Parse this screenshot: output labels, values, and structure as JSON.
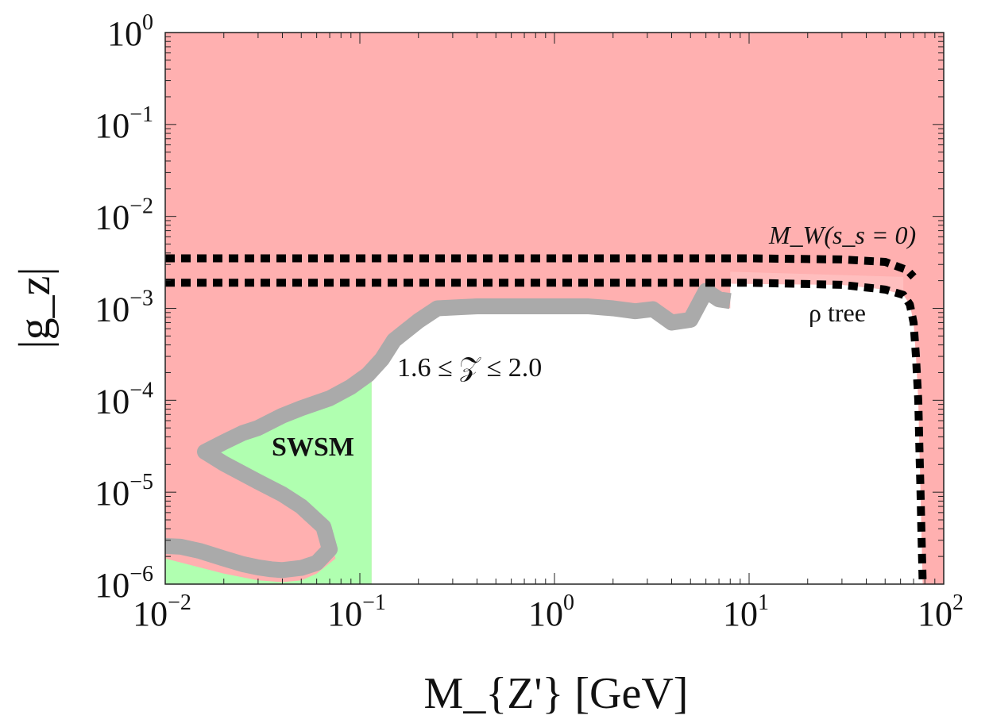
{
  "chart_data": {
    "type": "area",
    "xlabel": "M_{Z'} [GeV]",
    "ylabel": "|g_z|",
    "x_scale": "log",
    "y_scale": "log",
    "xlim": [
      0.01,
      100
    ],
    "ylim": [
      1e-06,
      1
    ],
    "grid": false,
    "x_ticks": [
      {
        "value": 0.01,
        "base": "10",
        "exp": "−2"
      },
      {
        "value": 0.1,
        "base": "10",
        "exp": "−1"
      },
      {
        "value": 1,
        "base": "10",
        "exp": "0"
      },
      {
        "value": 10,
        "base": "10",
        "exp": "1"
      },
      {
        "value": 100,
        "base": "10",
        "exp": "2"
      }
    ],
    "y_ticks": [
      {
        "value": 1,
        "base": "10",
        "exp": "0"
      },
      {
        "value": 0.1,
        "base": "10",
        "exp": "−1"
      },
      {
        "value": 0.01,
        "base": "10",
        "exp": "−2"
      },
      {
        "value": 0.001,
        "base": "10",
        "exp": "−3"
      },
      {
        "value": 0.0001,
        "base": "10",
        "exp": "−4"
      },
      {
        "value": 1e-05,
        "base": "10",
        "exp": "−5"
      },
      {
        "value": 1e-06,
        "base": "10",
        "exp": "−6"
      }
    ],
    "colors": {
      "excluded": "#ffb0b0",
      "allowed_swsm": "#b0ffb0",
      "band": "#aaaaaa",
      "light_band": "#ffc8c8",
      "line": "#000000"
    },
    "series": [
      {
        "key": "swsm_band",
        "style": "band",
        "points": [
          [
            0.01,
            2.6e-06
          ],
          [
            0.012,
            2.55e-06
          ],
          [
            0.015,
            2.3e-06
          ],
          [
            0.02,
            1.9e-06
          ],
          [
            0.025,
            1.65e-06
          ],
          [
            0.03,
            1.52e-06
          ],
          [
            0.035,
            1.45e-06
          ],
          [
            0.04,
            1.42e-06
          ],
          [
            0.05,
            1.5e-06
          ],
          [
            0.06,
            1.7e-06
          ],
          [
            0.07,
            2.4e-06
          ],
          [
            0.065,
            4.2e-06
          ],
          [
            0.05,
            7e-06
          ],
          [
            0.04,
            9.5e-06
          ],
          [
            0.03,
            1.3e-05
          ],
          [
            0.02,
            2.05e-05
          ],
          [
            0.016,
            2.75e-05
          ],
          [
            0.02,
            3.5e-05
          ],
          [
            0.025,
            4.4e-05
          ],
          [
            0.03,
            5e-05
          ],
          [
            0.04,
            6.8e-05
          ],
          [
            0.05,
            8.2e-05
          ],
          [
            0.07,
            0.000105
          ],
          [
            0.09,
            0.00014
          ],
          [
            0.11,
            0.00019
          ],
          [
            0.13,
            0.00028
          ],
          [
            0.15,
            0.00045
          ],
          [
            0.2,
            0.00073
          ],
          [
            0.25,
            0.001
          ],
          [
            0.4,
            0.00105
          ],
          [
            0.6,
            0.00105
          ],
          [
            1,
            0.00105
          ],
          [
            1.5,
            0.00105
          ],
          [
            2,
            0.001
          ],
          [
            2.6,
            0.00093
          ],
          [
            3.2,
            0.00098
          ],
          [
            4,
            0.0007
          ],
          [
            5,
            0.00075
          ],
          [
            6,
            0.00155
          ],
          [
            7,
            0.00125
          ],
          [
            8,
            0.0012
          ]
        ],
        "width": [
          1.3e-06,
          1.3e-06,
          1.3e-06,
          1.3e-06,
          1.3e-06,
          1.3e-06,
          1.3e-06,
          1.3e-06,
          1.3e-06,
          1.3e-06,
          1.3e-06,
          1.3e-06,
          1.3e-06,
          1.3e-06,
          1.3e-06,
          1.3e-06,
          1.3e-06,
          1.3e-06,
          1.3e-06,
          1.3e-06,
          1.3e-06,
          1.3e-06,
          1.3e-06,
          1.3e-06,
          1.3e-06,
          1.3e-06,
          1.3e-06,
          1.3e-06,
          1.3e-06,
          1.3e-06,
          1.3e-06,
          1.3e-06,
          1.3e-06,
          1.3e-06,
          1.3e-06,
          1.3e-06,
          1.3e-06,
          1.3e-06,
          1.3e-06,
          1.3e-06,
          1.3e-06
        ]
      },
      {
        "key": "mw_upper",
        "style": "dashed",
        "points": [
          [
            0.01,
            0.0035
          ],
          [
            1,
            0.0035
          ],
          [
            10,
            0.0035
          ],
          [
            30,
            0.0034
          ],
          [
            50,
            0.0032
          ],
          [
            65,
            0.0026
          ],
          [
            70,
            0.0022
          ]
        ]
      },
      {
        "key": "mw_lower",
        "style": "dashed",
        "points": [
          [
            0.01,
            0.0019
          ],
          [
            1,
            0.0019
          ],
          [
            10,
            0.0019
          ],
          [
            30,
            0.0018
          ],
          [
            50,
            0.0016
          ],
          [
            62,
            0.0014
          ],
          [
            67,
            0.0011
          ],
          [
            70,
            0.0007
          ],
          [
            72,
            0.0003
          ],
          [
            74,
            0.0001
          ],
          [
            75,
            3e-05
          ],
          [
            76,
            1e-05
          ],
          [
            77,
            3e-06
          ],
          [
            78,
            1e-06
          ]
        ]
      }
    ],
    "annotations": [
      {
        "key": "mw",
        "text": "M_W(s_s = 0)",
        "x": 35,
        "y": 0.0042
      },
      {
        "key": "rho",
        "text": "ρ tree",
        "x": 35,
        "y": 0.00065
      },
      {
        "key": "range",
        "text": "1.6 ≤ 𝒵 ≤ 2.0",
        "x": 0.48,
        "y": 0.00022
      },
      {
        "key": "swsm",
        "text": "SWSM",
        "x": 0.06,
        "y": 2.9e-05
      }
    ]
  }
}
